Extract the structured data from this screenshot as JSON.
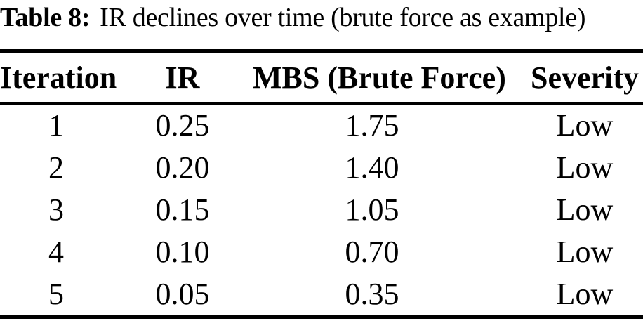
{
  "caption": {
    "label": "Table 8:",
    "text": "IR declines over time (brute force as example)"
  },
  "table": {
    "columns": [
      "Iteration",
      "IR",
      "MBS (Brute Force)",
      "Severity"
    ],
    "rows": [
      [
        "1",
        "0.25",
        "1.75",
        "Low"
      ],
      [
        "2",
        "0.20",
        "1.40",
        "Low"
      ],
      [
        "3",
        "0.15",
        "1.05",
        "Low"
      ],
      [
        "4",
        "0.10",
        "0.70",
        "Low"
      ],
      [
        "5",
        "0.05",
        "0.35",
        "Low"
      ]
    ]
  },
  "colors": {
    "text": "#000000",
    "background": "#ffffff",
    "rule": "#000000"
  }
}
